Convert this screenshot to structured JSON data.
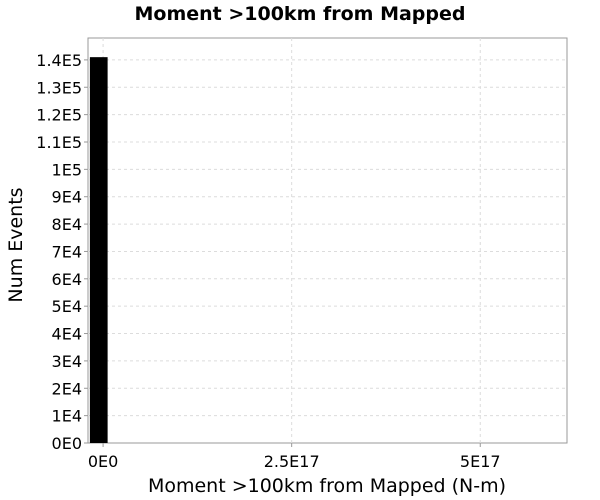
{
  "chart_data": {
    "type": "bar",
    "title": "Moment >100km from Mapped",
    "xlabel": "Moment >100km from Mapped (N-m)",
    "ylabel": "Num Events",
    "xlim": [
      -2e+16,
      6.15e+17
    ],
    "ylim": [
      0,
      148000
    ],
    "x_ticks": [
      0,
      2.5e+17,
      5e+17
    ],
    "x_tick_labels": [
      "0E0",
      "2.5E17",
      "5E17"
    ],
    "y_ticks": [
      0,
      10000,
      20000,
      30000,
      40000,
      50000,
      60000,
      70000,
      80000,
      90000,
      100000,
      110000,
      120000,
      130000,
      140000
    ],
    "y_tick_labels": [
      "0E0",
      "1E4",
      "2E4",
      "3E4",
      "4E4",
      "5E4",
      "6E4",
      "7E4",
      "8E4",
      "9E4",
      "1E5",
      "1.1E5",
      "1.2E5",
      "1.3E5",
      "1.4E5"
    ],
    "bars": [
      {
        "x_start": -1.75e+16,
        "x_end": 6000000000000000.0,
        "value": 141000
      }
    ],
    "grid": true,
    "legend": "none",
    "colors": {
      "bar": "#000000",
      "background": "#ffffff"
    }
  }
}
